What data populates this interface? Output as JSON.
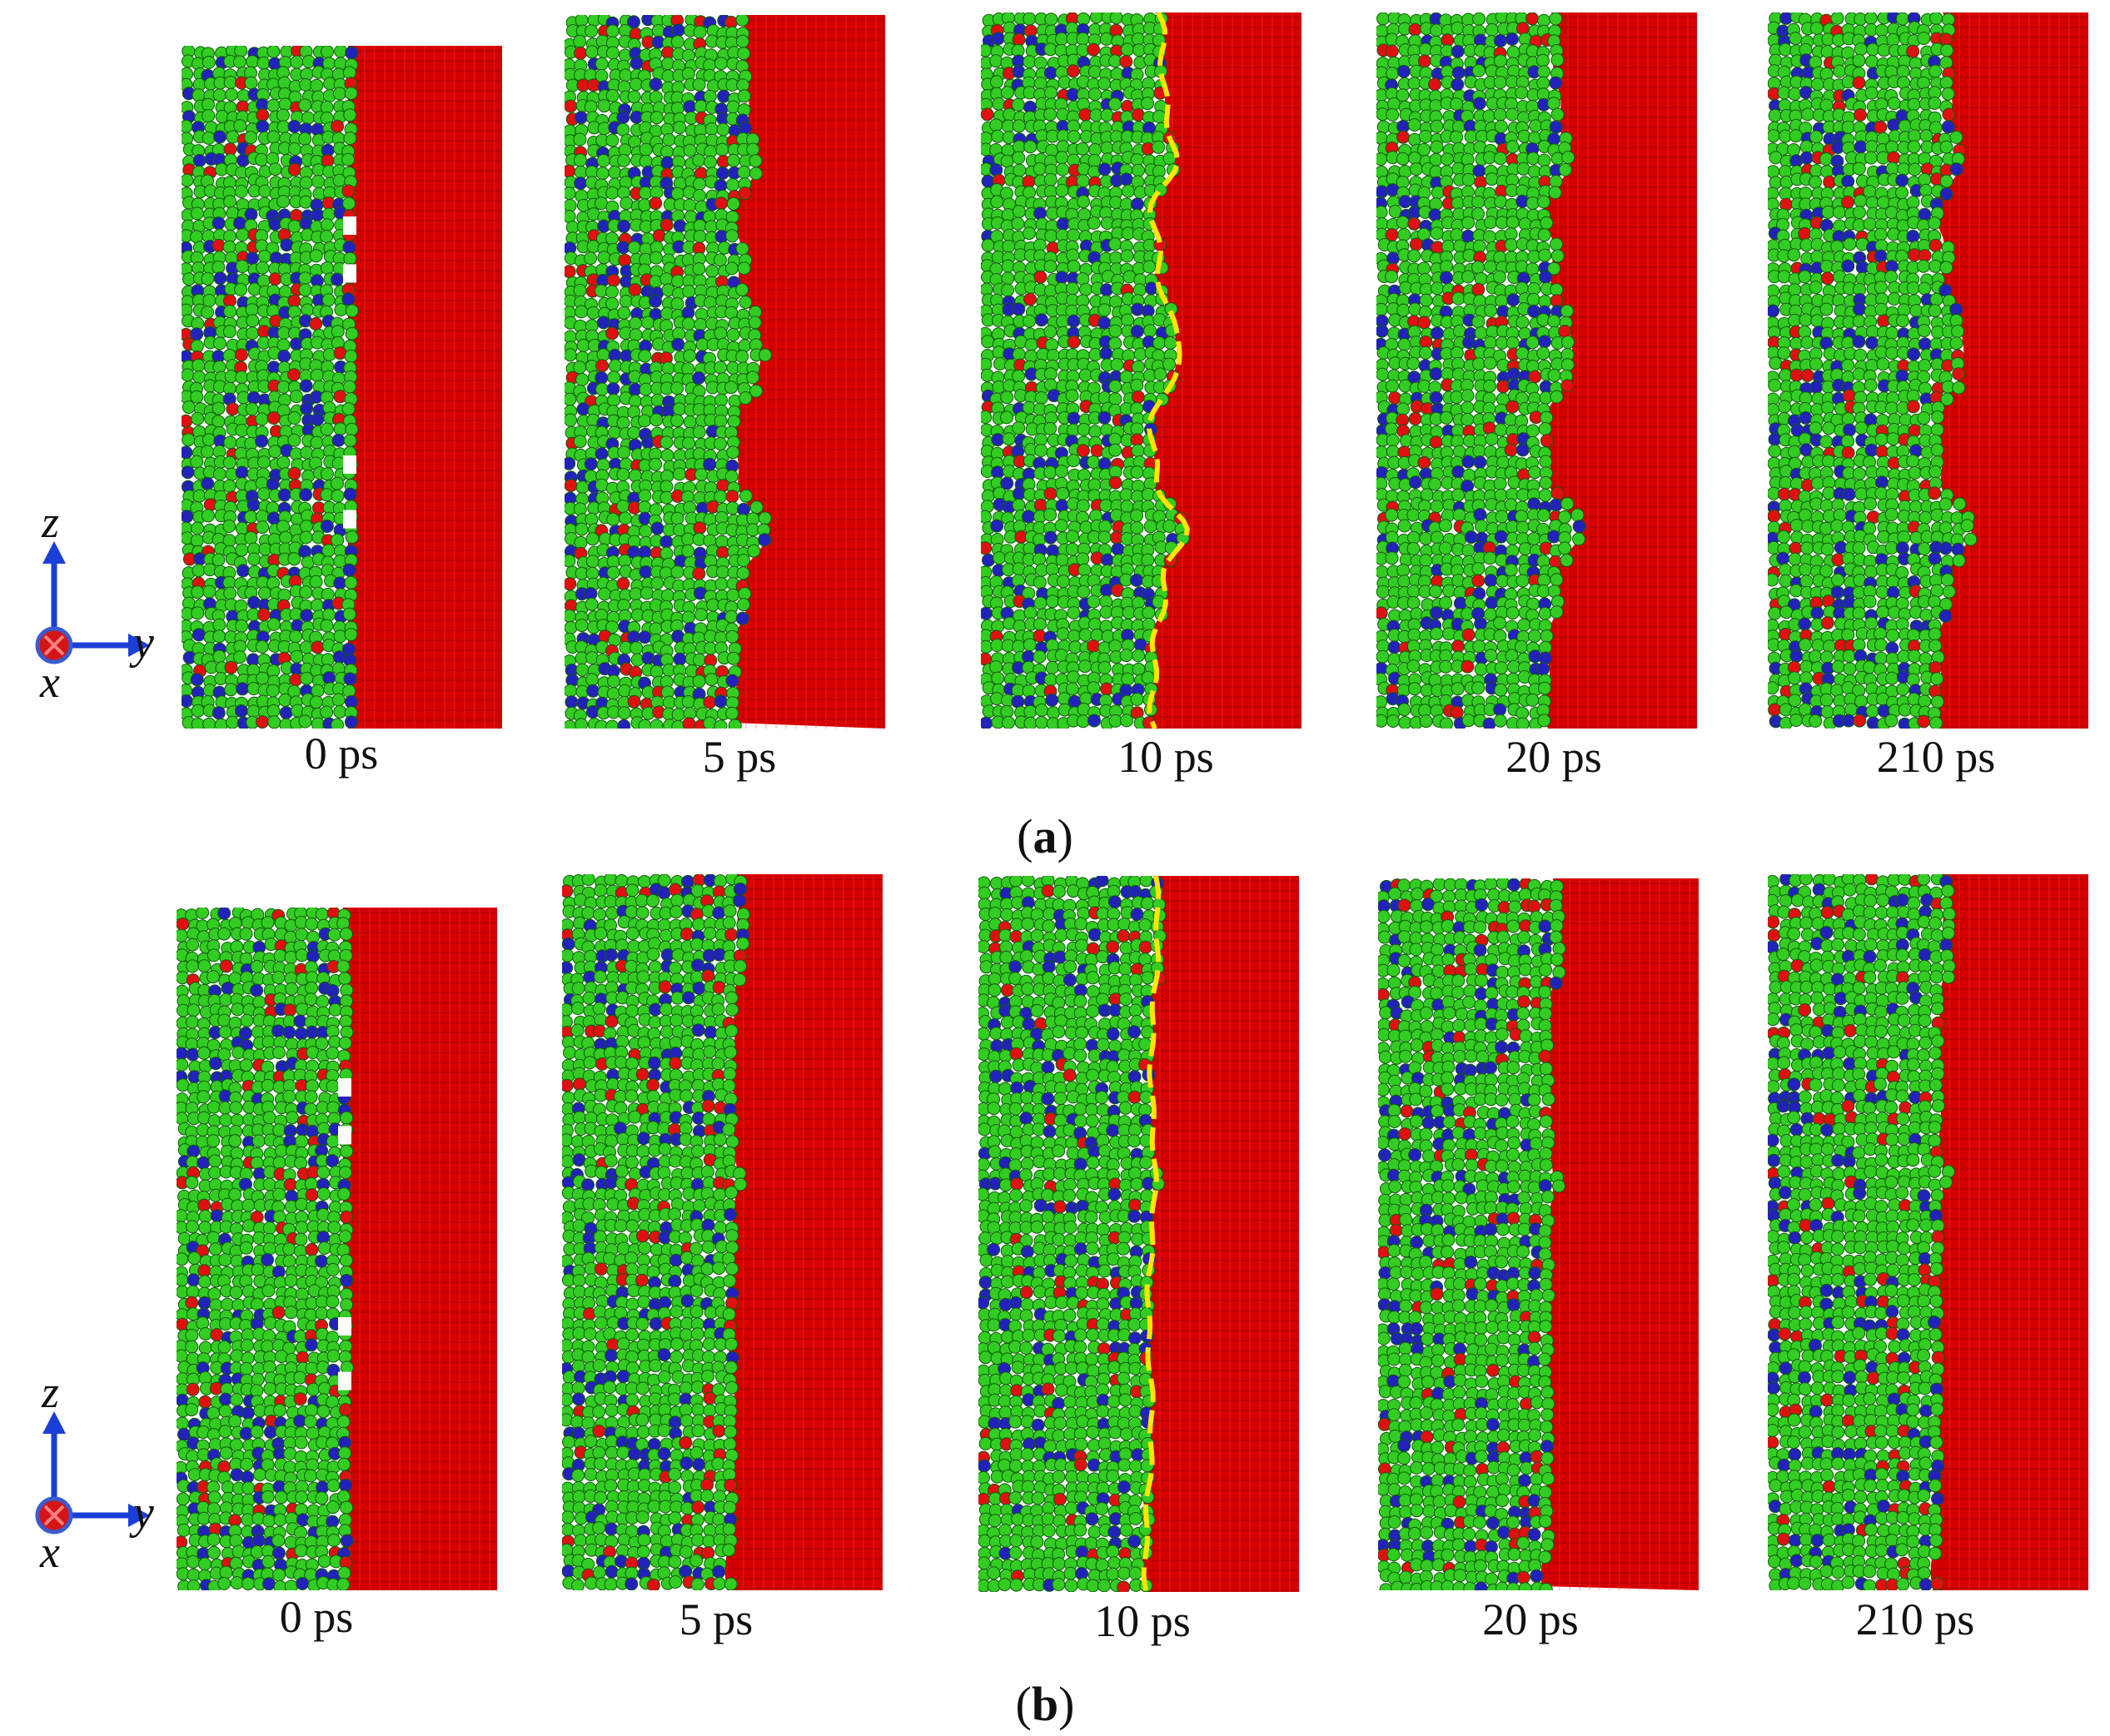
{
  "figure": {
    "rows": [
      {
        "panel_letter": "a",
        "snapshots": [
          {
            "time": "0 ps",
            "interface": "planar-voids"
          },
          {
            "time": "5 ps",
            "interface": "rough"
          },
          {
            "time": "10 ps",
            "interface": "rough-marked"
          },
          {
            "time": "20 ps",
            "interface": "rough"
          },
          {
            "time": "210 ps",
            "interface": "rough"
          }
        ]
      },
      {
        "panel_letter": "b",
        "snapshots": [
          {
            "time": "0 ps",
            "interface": "planar-voids"
          },
          {
            "time": "5 ps",
            "interface": "smooth"
          },
          {
            "time": "10 ps",
            "interface": "smooth-marked"
          },
          {
            "time": "20 ps",
            "interface": "smooth"
          },
          {
            "time": "210 ps",
            "interface": "smooth"
          }
        ]
      }
    ],
    "axes": {
      "vertical": "z",
      "horizontal": "y",
      "out_of_plane": "x"
    },
    "colors": {
      "green_atom": "#33cc22",
      "blue_atom": "#2222bb",
      "red_atom": "#e01010",
      "crystal_red": "#d40000",
      "interface_marker": "#ffe600",
      "axis_arrow": "#1a3fd6"
    }
  }
}
